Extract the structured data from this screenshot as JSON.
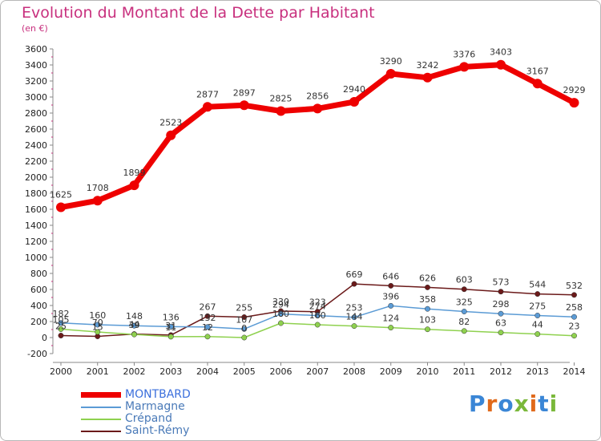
{
  "title": "Evolution du Montant de la Dette par Habitant",
  "unit": "(en €)",
  "logo_text": "Proxiti",
  "chart_data": {
    "type": "line",
    "x": [
      "2000",
      "2001",
      "2002",
      "2003",
      "2004",
      "2005",
      "2006",
      "2007",
      "2008",
      "2009",
      "2010",
      "2011",
      "2012",
      "2013",
      "2014"
    ],
    "ylim": [
      -200,
      3600
    ],
    "yticks": [
      -200,
      0,
      200,
      400,
      600,
      800,
      1000,
      1200,
      1400,
      1600,
      1800,
      2000,
      2200,
      2400,
      2600,
      2800,
      3000,
      3200,
      3400,
      3600
    ],
    "grid": false,
    "legend_position": "bottom-left",
    "series": [
      {
        "name": "MONTBARD",
        "color": "#ee0000",
        "values": [
          1625,
          1708,
          1899,
          2523,
          2877,
          2897,
          2825,
          2856,
          2940,
          3290,
          3242,
          3376,
          3403,
          3167,
          2929
        ],
        "labels": [
          "1625",
          "1708",
          "1899",
          "2523",
          "2877",
          "2897",
          "2825",
          "2856",
          "2940",
          "3290",
          "3242",
          "3376",
          "3403",
          "3167",
          "2929"
        ]
      },
      {
        "name": "Marmagne",
        "color": "#5b9bd5",
        "values": [
          182,
          160,
          148,
          136,
          132,
          107,
          294,
          274,
          253,
          396,
          358,
          325,
          298,
          275,
          258
        ],
        "labels": [
          "182",
          "160",
          "148",
          "136",
          "132",
          "107",
          "294",
          "274",
          "253",
          "396",
          "358",
          "325",
          "298",
          "275",
          "258"
        ]
      },
      {
        "name": "Crépand",
        "color": "#8fd14f",
        "values": [
          105,
          70,
          39,
          11,
          12,
          0,
          180,
          160,
          144,
          124,
          103,
          82,
          63,
          44,
          23
        ],
        "labels": [
          "105",
          "70",
          "39",
          "11",
          "12",
          "0",
          "180",
          "160",
          "144",
          "124",
          "103",
          "82",
          "63",
          "44",
          "23"
        ]
      },
      {
        "name": "Saint-Rémy",
        "color": "#6b1a1a",
        "values": [
          25,
          15,
          44,
          31,
          267,
          255,
          330,
          323,
          669,
          646,
          626,
          603,
          573,
          544,
          532
        ],
        "labels": [
          "25",
          "15",
          "44",
          "31",
          "267",
          "255",
          "330",
          "323",
          "669",
          "646",
          "626",
          "603",
          "573",
          "544",
          "532"
        ]
      }
    ]
  }
}
